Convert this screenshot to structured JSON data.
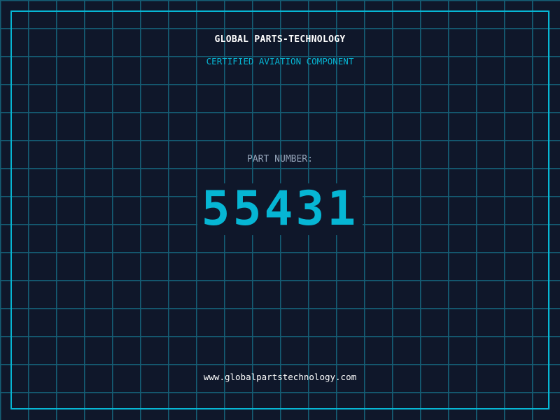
{
  "header": {
    "title": "GLOBAL PARTS-TECHNOLOGY",
    "subtitle": "CERTIFIED AVIATION COMPONENT"
  },
  "part": {
    "label": "PART NUMBER:",
    "number": "55431"
  },
  "footer": {
    "url": "www.globalpartstechnology.com"
  },
  "colors": {
    "background": "#0f172a",
    "grid": "#155e75",
    "accent": "#06b6d4",
    "label": "#94a3b8",
    "title": "#ffffff"
  }
}
